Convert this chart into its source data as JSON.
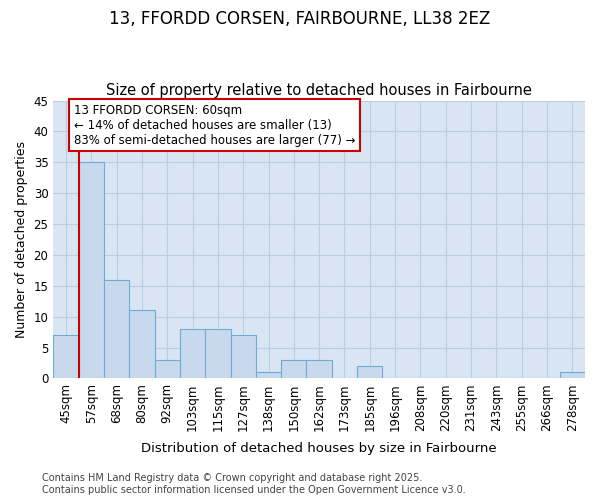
{
  "title": "13, FFORDD CORSEN, FAIRBOURNE, LL38 2EZ",
  "subtitle": "Size of property relative to detached houses in Fairbourne",
  "xlabel": "Distribution of detached houses by size in Fairbourne",
  "ylabel": "Number of detached properties",
  "categories": [
    "45sqm",
    "57sqm",
    "68sqm",
    "80sqm",
    "92sqm",
    "103sqm",
    "115sqm",
    "127sqm",
    "138sqm",
    "150sqm",
    "162sqm",
    "173sqm",
    "185sqm",
    "196sqm",
    "208sqm",
    "220sqm",
    "231sqm",
    "243sqm",
    "255sqm",
    "266sqm",
    "278sqm"
  ],
  "values": [
    7,
    35,
    16,
    11,
    3,
    8,
    8,
    7,
    1,
    3,
    3,
    0,
    2,
    0,
    0,
    0,
    0,
    0,
    0,
    0,
    1
  ],
  "bar_color": "#c8d9ee",
  "bar_edge_color": "#6aaed6",
  "grid_color": "#b8cfe0",
  "background_color": "#d9e5f2",
  "vline_x_index": 1,
  "vline_color": "#cc0000",
  "annotation_box_text": "13 FFORDD CORSEN: 60sqm\n← 14% of detached houses are smaller (13)\n83% of semi-detached houses are larger (77) →",
  "annotation_box_color": "#cc0000",
  "ylim": [
    0,
    45
  ],
  "yticks": [
    0,
    5,
    10,
    15,
    20,
    25,
    30,
    35,
    40,
    45
  ],
  "title_fontsize": 12,
  "subtitle_fontsize": 10.5,
  "ylabel_fontsize": 9,
  "xlabel_fontsize": 9.5,
  "tick_fontsize": 8.5,
  "annotation_fontsize": 8.5,
  "footnote_fontsize": 7,
  "footnote": "Contains HM Land Registry data © Crown copyright and database right 2025.\nContains public sector information licensed under the Open Government Licence v3.0."
}
